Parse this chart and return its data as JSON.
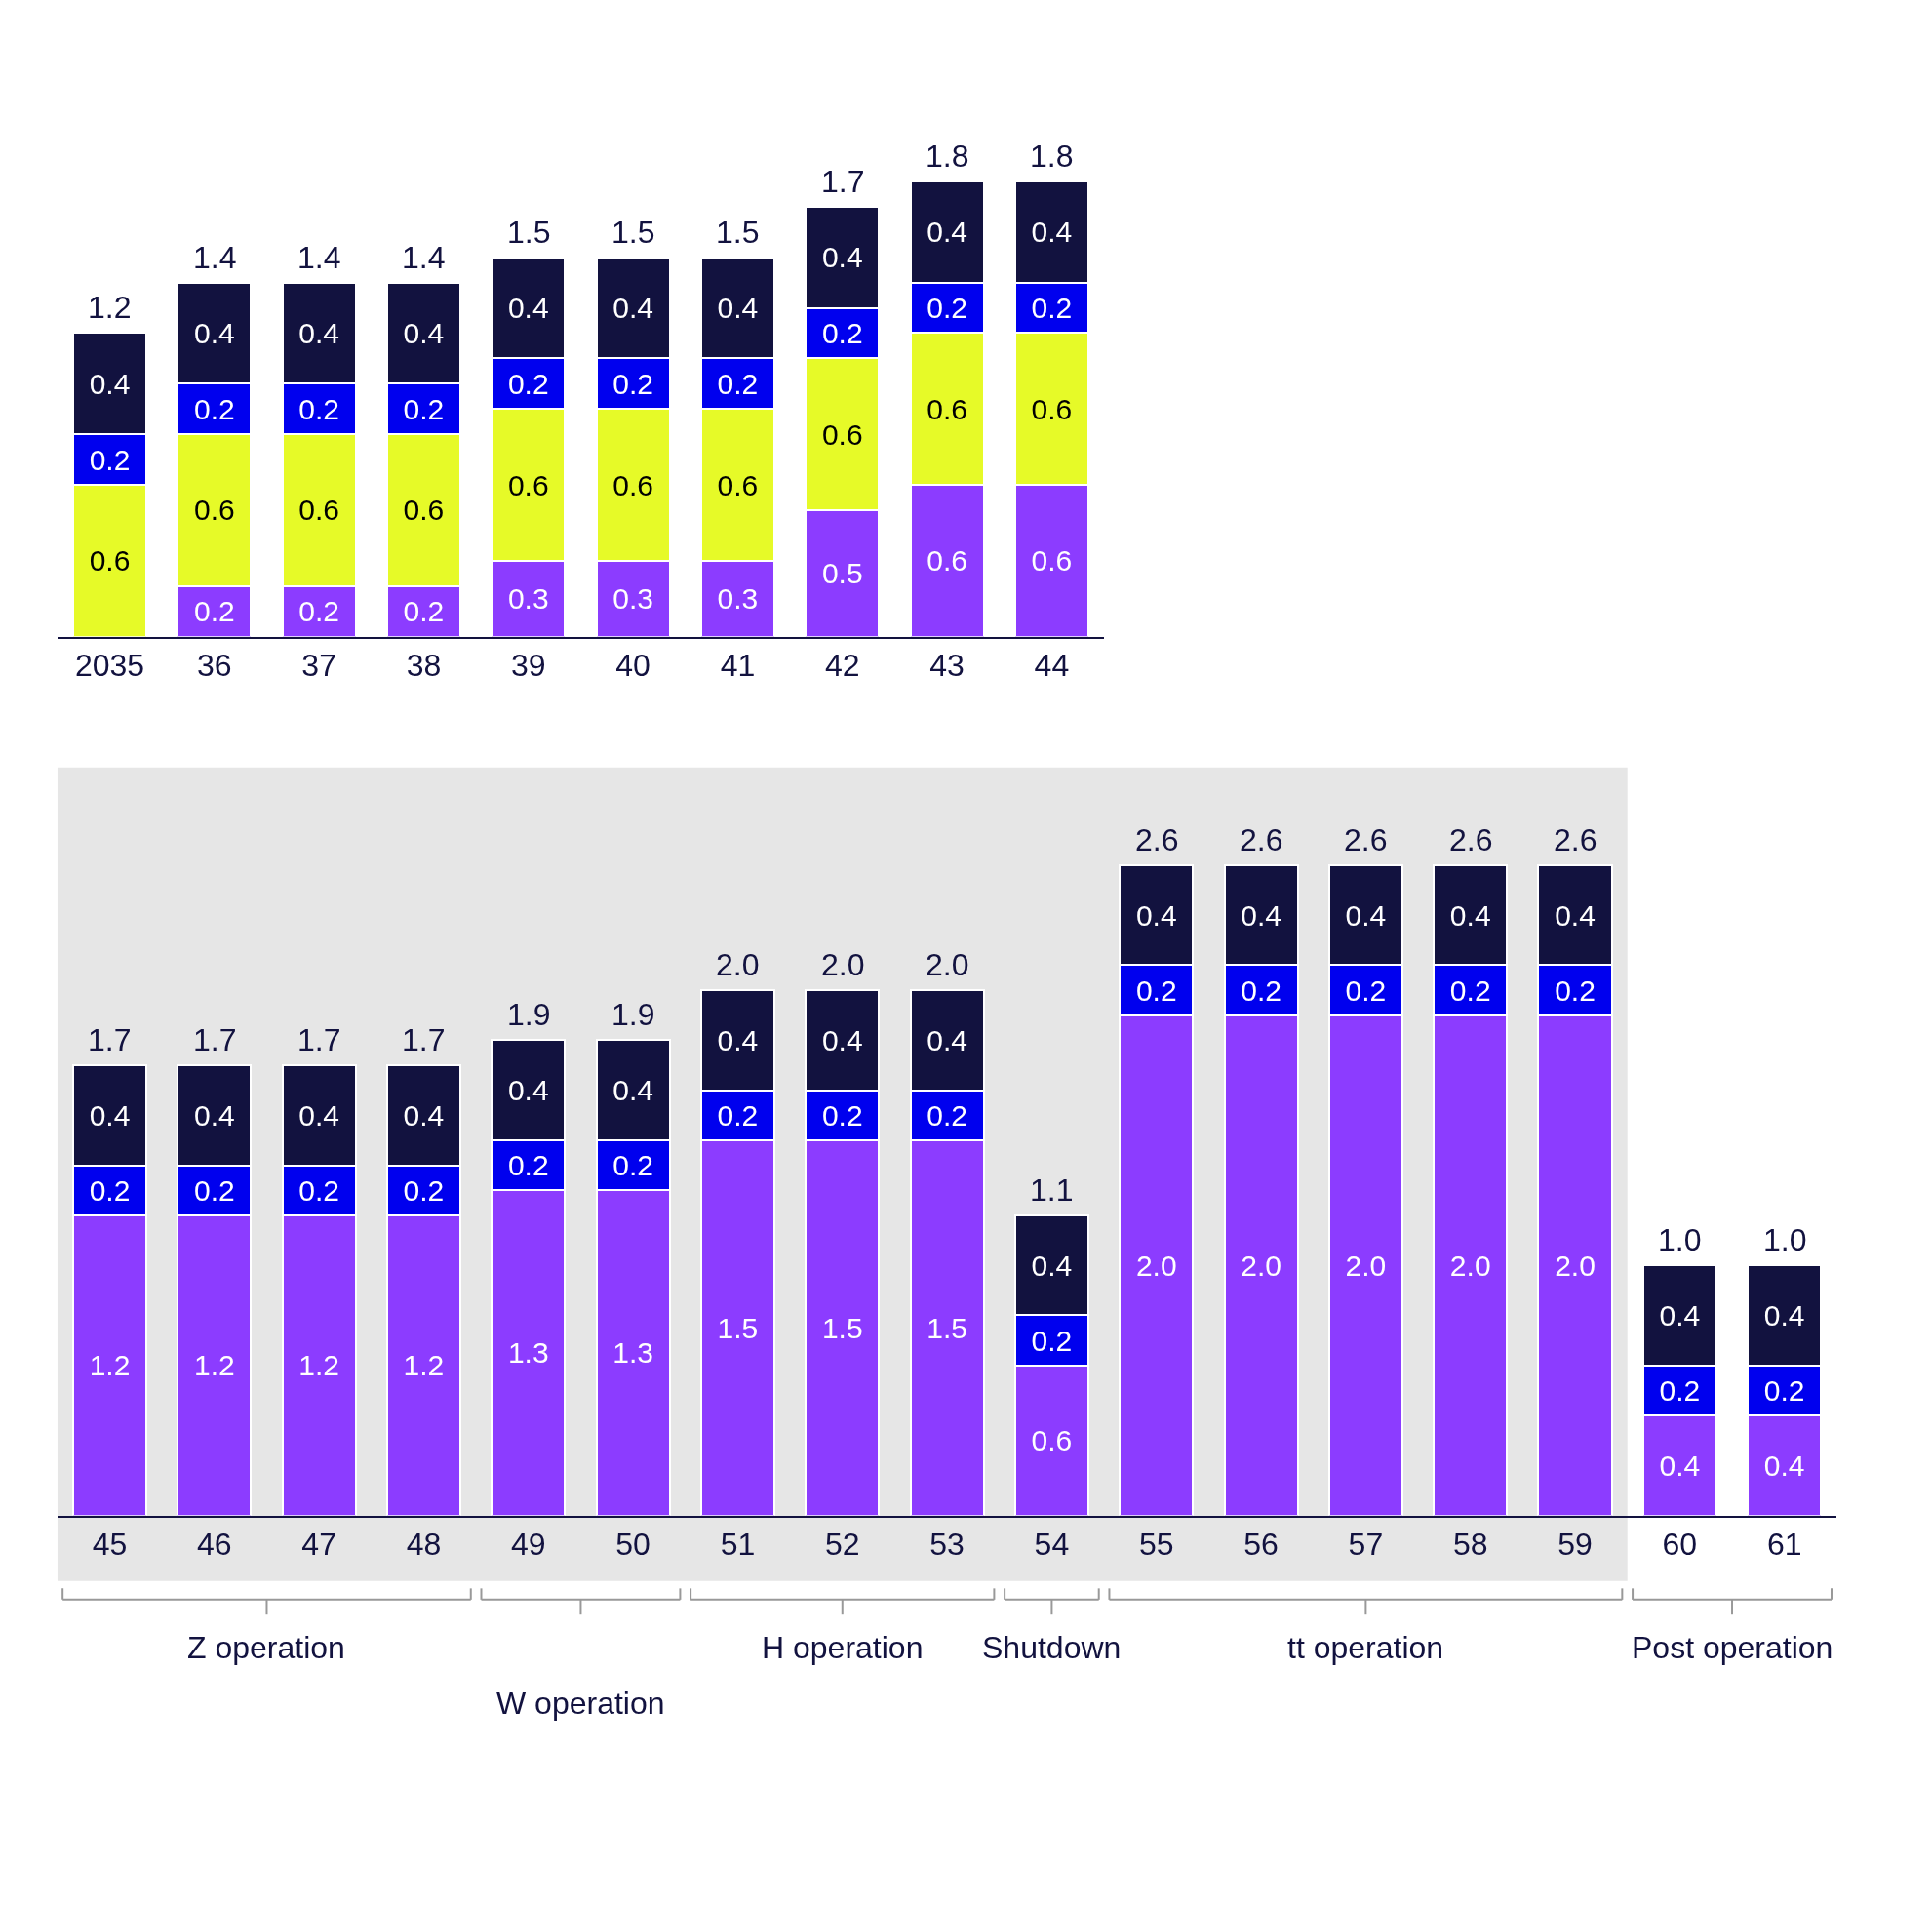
{
  "chart_data": [
    {
      "type": "bar",
      "stacked": true,
      "data_labels": true,
      "grid": false,
      "tick_labels": "x",
      "categories": [
        "2035",
        "36",
        "37",
        "38",
        "39",
        "40",
        "41",
        "42",
        "43",
        "44"
      ],
      "series": [
        {
          "color": "#8c3cff",
          "values": [
            null,
            0.2,
            0.2,
            0.2,
            0.3,
            0.3,
            0.3,
            0.5,
            0.6,
            0.6
          ]
        },
        {
          "color": "#e6fa28",
          "values": [
            0.6,
            0.6,
            0.6,
            0.6,
            0.6,
            0.6,
            0.6,
            0.6,
            0.6,
            0.6
          ]
        },
        {
          "color": "#0000ee",
          "values": [
            0.2,
            0.2,
            0.2,
            0.2,
            0.2,
            0.2,
            0.2,
            0.2,
            0.2,
            0.2
          ]
        },
        {
          "color": "#12123f",
          "values": [
            0.4,
            0.4,
            0.4,
            0.4,
            0.4,
            0.4,
            0.4,
            0.4,
            0.4,
            0.4
          ]
        }
      ],
      "totals": [
        "1.2",
        "1.4",
        "1.4",
        "1.4",
        "1.5",
        "1.5",
        "1.5",
        "1.7",
        "1.8",
        "1.8"
      ]
    },
    {
      "type": "bar",
      "stacked": true,
      "data_labels": true,
      "grid": false,
      "tick_labels": "x",
      "categories": [
        "45",
        "46",
        "47",
        "48",
        "49",
        "50",
        "51",
        "52",
        "53",
        "54",
        "55",
        "56",
        "57",
        "58",
        "59",
        "60",
        "61"
      ],
      "series": [
        {
          "color": "#8c3cff",
          "values": [
            1.2,
            1.2,
            1.2,
            1.2,
            1.3,
            1.3,
            1.5,
            1.5,
            1.5,
            0.6,
            2.0,
            2.0,
            2.0,
            2.0,
            2.0,
            0.4,
            0.4
          ],
          "value_labels": [
            "1.2",
            "1.2",
            "1.2",
            "1.2",
            "1.3",
            "1.3",
            "1.5",
            "1.5",
            "1.5",
            "0.6",
            "2.0",
            "2.0",
            "2.0",
            "2.0",
            "2.0",
            "0.4",
            "0.4"
          ]
        },
        {
          "color": "#0000ee",
          "values": [
            0.2,
            0.2,
            0.2,
            0.2,
            0.2,
            0.2,
            0.2,
            0.2,
            0.2,
            0.2,
            0.2,
            0.2,
            0.2,
            0.2,
            0.2,
            0.2,
            0.2
          ]
        },
        {
          "color": "#12123f",
          "values": [
            0.4,
            0.4,
            0.4,
            0.4,
            0.4,
            0.4,
            0.4,
            0.4,
            0.4,
            0.4,
            0.4,
            0.4,
            0.4,
            0.4,
            0.4,
            0.4,
            0.4
          ]
        }
      ],
      "totals": [
        "1.7",
        "1.7",
        "1.7",
        "1.7",
        "1.9",
        "1.9",
        "2.0",
        "2.0",
        "2.0",
        "1.1",
        "2.6",
        "2.6",
        "2.6",
        "2.6",
        "2.6",
        "1.0",
        "1.0"
      ],
      "bands": [
        {
          "axis": "x",
          "from": "45",
          "to": "59",
          "color": "#e6e6e6"
        }
      ],
      "annotations": [
        "Z operation",
        "W operation",
        "H operation",
        "Shutdown",
        "tt operation",
        "Post operation"
      ]
    }
  ]
}
